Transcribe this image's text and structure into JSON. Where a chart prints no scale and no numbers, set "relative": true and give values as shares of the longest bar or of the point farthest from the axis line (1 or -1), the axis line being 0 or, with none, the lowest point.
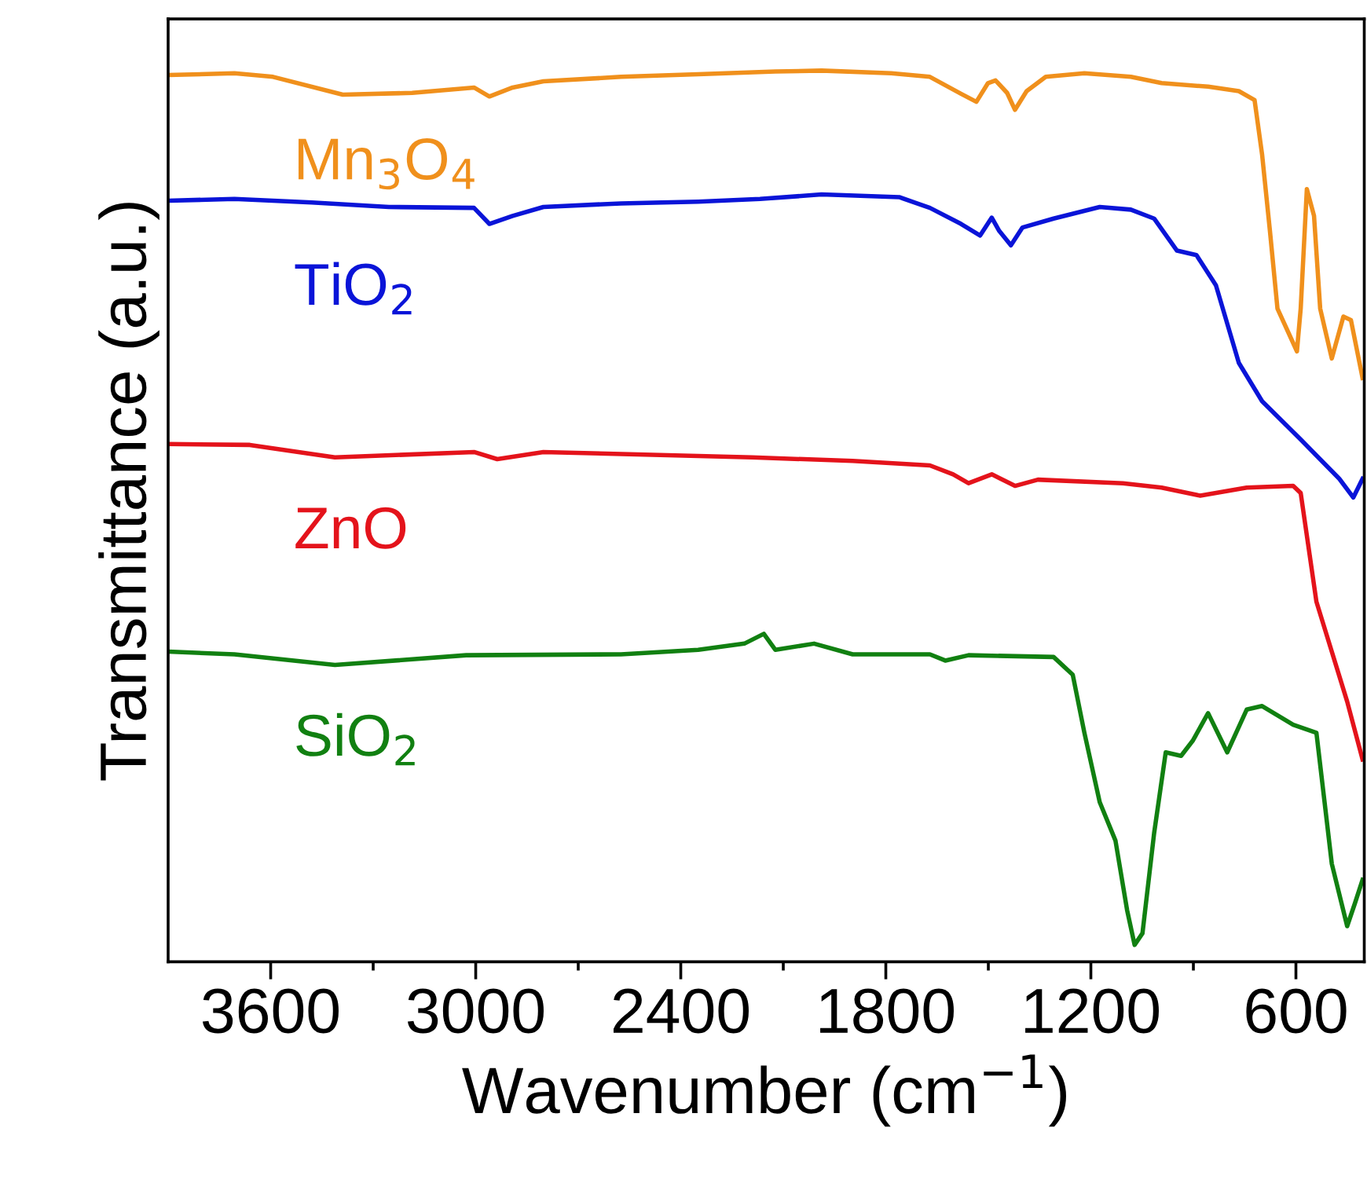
{
  "chart_data": {
    "type": "line",
    "relative": true,
    "xlabel": "Wavenumber (cm$^{−1}$)",
    "ylabel": "Transmittance (a.u.)",
    "xlim": [
      3900,
      400
    ],
    "xticks": [
      3600,
      {
        "value": 3300,
        "label": null
      },
      3000,
      {
        "value": 2700,
        "label": null
      },
      2400,
      {
        "value": 2100,
        "label": null
      },
      1800,
      {
        "value": 1500,
        "label": null
      },
      1200,
      {
        "value": 900,
        "label": null
      },
      600
    ],
    "grid": false,
    "legend": false,
    "marker": "none",
    "line_style": "solid",
    "tick_labels": "x",
    "series": [
      {
        "name": "Mn$_{3}$O$_{4}$",
        "color": "#f0901c",
        "x": [
          3900,
          3706,
          3593,
          3389,
          3186,
          3005,
          2960,
          2892,
          2802,
          2575,
          2349,
          2123,
          1988,
          1784,
          1671,
          1580,
          1535,
          1501,
          1479,
          1445,
          1422,
          1388,
          1332,
          1219,
          1083,
          993,
          857,
          767,
          721,
          699,
          676,
          654,
          597,
          586,
          568,
          547,
          529,
          495,
          461,
          439,
          405
        ],
        "values": [
          0.995,
          0.997,
          0.993,
          0.973,
          0.975,
          0.981,
          0.971,
          0.981,
          0.988,
          0.993,
          0.996,
          0.999,
          1.0,
          0.997,
          0.993,
          0.974,
          0.965,
          0.986,
          0.989,
          0.975,
          0.956,
          0.977,
          0.993,
          0.997,
          0.993,
          0.986,
          0.982,
          0.977,
          0.967,
          0.906,
          0.82,
          0.733,
          0.685,
          0.733,
          0.867,
          0.837,
          0.733,
          0.677,
          0.724,
          0.72,
          0.655
        ]
      },
      {
        "name": "TiO$_{2}$",
        "color": "#0a14d8",
        "x": [
          3900,
          3706,
          3480,
          3254,
          3005,
          2960,
          2892,
          2802,
          2575,
          2349,
          2168,
          1988,
          1761,
          1671,
          1580,
          1524,
          1490,
          1468,
          1434,
          1400,
          1309,
          1174,
          1083,
          1015,
          948,
          891,
          834,
          767,
          699,
          586,
          473,
          432,
          405
        ],
        "values": [
          0.854,
          0.856,
          0.852,
          0.847,
          0.846,
          0.828,
          0.837,
          0.847,
          0.851,
          0.853,
          0.856,
          0.861,
          0.858,
          0.846,
          0.828,
          0.815,
          0.835,
          0.82,
          0.804,
          0.824,
          0.834,
          0.847,
          0.844,
          0.834,
          0.798,
          0.793,
          0.759,
          0.672,
          0.629,
          0.586,
          0.542,
          0.521,
          0.542
        ]
      },
      {
        "name": "ZnO",
        "color": "#e4131b",
        "x": [
          3900,
          3661,
          3412,
          3005,
          2937,
          2802,
          2191,
          1897,
          1671,
          1603,
          1558,
          1490,
          1422,
          1355,
          1106,
          993,
          880,
          744,
          608,
          586,
          540,
          450,
          405
        ],
        "values": [
          0.581,
          0.58,
          0.566,
          0.572,
          0.564,
          0.572,
          0.566,
          0.562,
          0.557,
          0.547,
          0.537,
          0.547,
          0.534,
          0.541,
          0.537,
          0.532,
          0.523,
          0.532,
          0.534,
          0.526,
          0.404,
          0.292,
          0.227
        ]
      },
      {
        "name": "SiO$_{2}$",
        "color": "#118011",
        "x": [
          3900,
          3706,
          3412,
          3028,
          2575,
          2349,
          2214,
          2157,
          2123,
          2010,
          1897,
          1671,
          1626,
          1558,
          1309,
          1253,
          1219,
          1174,
          1128,
          1094,
          1072,
          1049,
          1015,
          981,
          936,
          902,
          857,
          801,
          744,
          699,
          608,
          540,
          495,
          450,
          427,
          405
        ],
        "values": [
          0.348,
          0.345,
          0.333,
          0.344,
          0.345,
          0.35,
          0.357,
          0.368,
          0.35,
          0.357,
          0.345,
          0.345,
          0.338,
          0.344,
          0.342,
          0.322,
          0.257,
          0.179,
          0.136,
          0.058,
          0.019,
          0.032,
          0.144,
          0.235,
          0.231,
          0.248,
          0.279,
          0.235,
          0.283,
          0.287,
          0.266,
          0.257,
          0.11,
          0.04,
          0.066,
          0.092
        ]
      }
    ]
  }
}
